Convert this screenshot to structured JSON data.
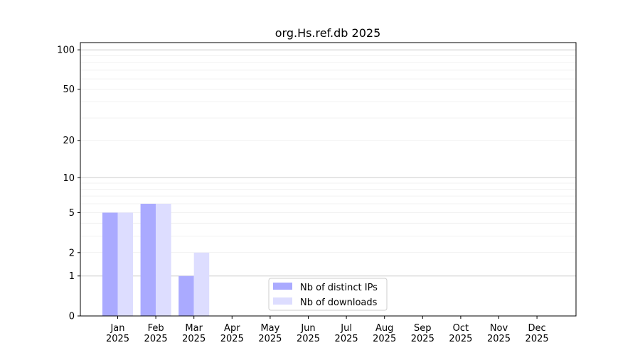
{
  "chart_data": {
    "type": "bar",
    "title": "org.Hs.ref.db 2025",
    "categories": [
      "Jan\n2025",
      "Feb\n2025",
      "Mar\n2025",
      "Apr\n2025",
      "May\n2025",
      "Jun\n2025",
      "Jul\n2025",
      "Aug\n2025",
      "Sep\n2025",
      "Oct\n2025",
      "Nov\n2025",
      "Dec\n2025"
    ],
    "series": [
      {
        "name": "Nb of distinct IPs",
        "color": "#aaaaff",
        "values": [
          5,
          6,
          1,
          0,
          0,
          0,
          0,
          0,
          0,
          0,
          0,
          0
        ]
      },
      {
        "name": "Nb of downloads",
        "color": "#ddddff",
        "values": [
          5,
          6,
          2,
          0,
          0,
          0,
          0,
          0,
          0,
          0,
          0,
          0
        ]
      }
    ],
    "yscale": "symlog",
    "yticks": [
      0,
      1,
      2,
      5,
      10,
      20,
      50,
      100
    ],
    "ylim": [
      0,
      113
    ],
    "grid": true,
    "legend": "bottom-center"
  }
}
